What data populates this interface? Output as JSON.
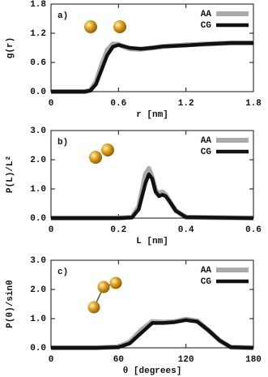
{
  "chart_data": [
    {
      "type": "line",
      "panel_label": "a)",
      "xlabel": "r [nm]",
      "ylabel": "g(r)",
      "x": [
        0,
        0.3,
        0.35,
        0.4,
        0.45,
        0.5,
        0.55,
        0.6,
        0.65,
        0.7,
        0.8,
        0.9,
        1.0,
        1.2,
        1.4,
        1.6,
        1.8
      ],
      "series": [
        {
          "name": "AA",
          "color": "#aaaaaa",
          "values": [
            0,
            0,
            0.03,
            0.2,
            0.55,
            0.85,
            0.98,
            0.97,
            0.92,
            0.88,
            0.87,
            0.9,
            0.93,
            0.96,
            0.98,
            1.0,
            1.0
          ]
        },
        {
          "name": "CG",
          "color": "#111111",
          "values": [
            0,
            0,
            0.02,
            0.15,
            0.45,
            0.75,
            0.92,
            0.96,
            0.93,
            0.9,
            0.88,
            0.9,
            0.93,
            0.95,
            0.98,
            1.0,
            1.0
          ]
        }
      ],
      "xlim": [
        0,
        1.8
      ],
      "xticks": [
        0,
        0.6,
        1.2,
        1.8
      ],
      "ylim": [
        0,
        1.8
      ],
      "yticks": [
        {
          "value": 0,
          "label": "0.0"
        },
        0.6,
        1.2,
        1.8
      ],
      "legend": "upper right"
    },
    {
      "type": "line",
      "panel_label": "b)",
      "xlabel": "L [nm]",
      "ylabel": "P(L)/L²",
      "x": [
        0,
        0.2,
        0.24,
        0.26,
        0.28,
        0.29,
        0.3,
        0.31,
        0.32,
        0.33,
        0.34,
        0.35,
        0.37,
        0.4,
        0.6
      ],
      "series": [
        {
          "name": "AA",
          "color": "#aaaaaa",
          "values": [
            0,
            0,
            0.03,
            0.4,
            1.5,
            1.7,
            1.4,
            0.95,
            0.85,
            0.9,
            0.8,
            0.6,
            0.25,
            0.03,
            0
          ]
        },
        {
          "name": "CG",
          "color": "#111111",
          "values": [
            0,
            0,
            0.02,
            0.3,
            1.2,
            1.5,
            1.35,
            0.9,
            0.75,
            0.8,
            0.75,
            0.6,
            0.25,
            0.03,
            0
          ]
        }
      ],
      "xlim": [
        0,
        0.6
      ],
      "xticks": [
        0,
        0.2,
        0.4,
        0.6
      ],
      "ylim": [
        0,
        3
      ],
      "yticks": [
        {
          "value": 0,
          "label": "0.0"
        },
        {
          "value": 1,
          "label": "1.0"
        },
        {
          "value": 2,
          "label": "2.0"
        },
        {
          "value": 3,
          "label": "3.0"
        }
      ],
      "legend": "upper right"
    },
    {
      "type": "line",
      "panel_label": "c)",
      "xlabel": "θ [degrees]",
      "ylabel": "P(θ)/sinθ",
      "x": [
        0,
        40,
        60,
        70,
        80,
        90,
        100,
        110,
        120,
        130,
        140,
        150,
        160,
        180
      ],
      "series": [
        {
          "name": "AA",
          "color": "#aaaaaa",
          "values": [
            0,
            0,
            0.03,
            0.2,
            0.6,
            0.9,
            0.88,
            0.9,
            0.98,
            0.92,
            0.6,
            0.25,
            0.02,
            0
          ]
        },
        {
          "name": "CG",
          "color": "#111111",
          "values": [
            0,
            0,
            0.02,
            0.15,
            0.5,
            0.85,
            0.85,
            0.88,
            0.95,
            0.9,
            0.6,
            0.25,
            0.02,
            0
          ]
        }
      ],
      "xlim": [
        0,
        180
      ],
      "xticks": [
        0,
        60,
        120,
        180
      ],
      "ylim": [
        0,
        3
      ],
      "yticks": [
        {
          "value": 0,
          "label": "0.0"
        },
        {
          "value": 1,
          "label": "1.0"
        },
        {
          "value": 2,
          "label": "2.0"
        },
        {
          "value": 3,
          "label": "3.0"
        }
      ],
      "legend": "upper right"
    }
  ]
}
